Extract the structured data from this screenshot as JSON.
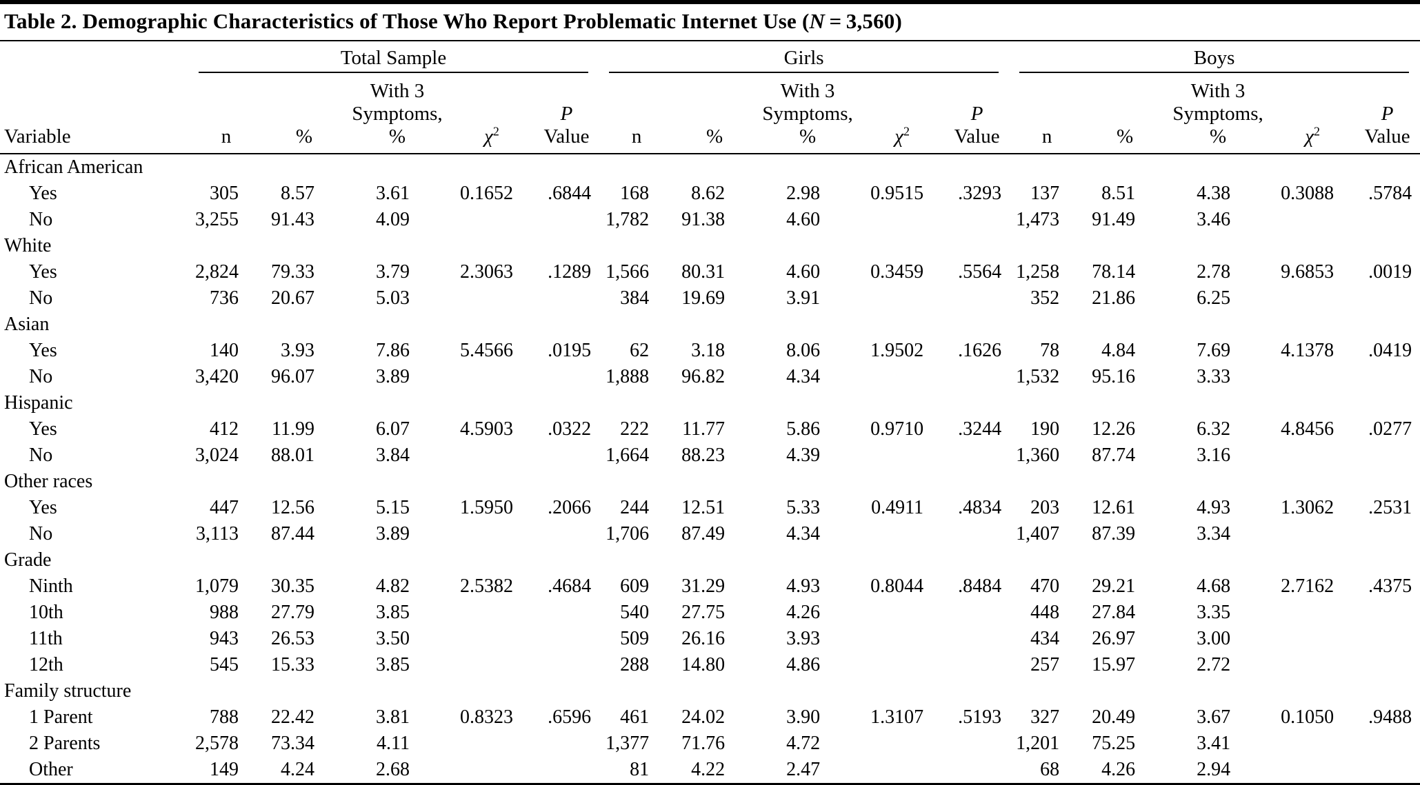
{
  "title": {
    "prefix": "Table 2. Demographic Characteristics of Those Who Report Problematic Internet Use (",
    "n_symbol": "N",
    "suffix": " = 3,560)"
  },
  "table": {
    "groups": [
      "Total Sample",
      "Girls",
      "Boys"
    ],
    "columns": {
      "variable": "Variable",
      "n": "n",
      "pct": "%",
      "symptoms": "With 3\nSymptoms,\n%",
      "chi": "χ",
      "chi_sup": "2",
      "p_line1": "P",
      "p_line2": "Value"
    },
    "rows": [
      {
        "label": "African American",
        "type": "category",
        "indent": false,
        "cells": []
      },
      {
        "label": "Yes",
        "type": "data",
        "indent": true,
        "cells": [
          "305",
          "8.57",
          "3.61",
          "0.1652",
          ".6844",
          "168",
          "8.62",
          "2.98",
          "0.9515",
          ".3293",
          "137",
          "8.51",
          "4.38",
          "0.3088",
          ".5784"
        ]
      },
      {
        "label": "No",
        "type": "data",
        "indent": true,
        "cells": [
          "3,255",
          "91.43",
          "4.09",
          "",
          "",
          "1,782",
          "91.38",
          "4.60",
          "",
          "",
          "1,473",
          "91.49",
          "3.46",
          "",
          ""
        ]
      },
      {
        "label": "White",
        "type": "category",
        "indent": false,
        "cells": []
      },
      {
        "label": "Yes",
        "type": "data",
        "indent": true,
        "cells": [
          "2,824",
          "79.33",
          "3.79",
          "2.3063",
          ".1289",
          "1,566",
          "80.31",
          "4.60",
          "0.3459",
          ".5564",
          "1,258",
          "78.14",
          "2.78",
          "9.6853",
          ".0019"
        ]
      },
      {
        "label": "No",
        "type": "data",
        "indent": true,
        "cells": [
          "736",
          "20.67",
          "5.03",
          "",
          "",
          "384",
          "19.69",
          "3.91",
          "",
          "",
          "352",
          "21.86",
          "6.25",
          "",
          ""
        ]
      },
      {
        "label": "Asian",
        "type": "category",
        "indent": false,
        "cells": []
      },
      {
        "label": "Yes",
        "type": "data",
        "indent": true,
        "cells": [
          "140",
          "3.93",
          "7.86",
          "5.4566",
          ".0195",
          "62",
          "3.18",
          "8.06",
          "1.9502",
          ".1626",
          "78",
          "4.84",
          "7.69",
          "4.1378",
          ".0419"
        ]
      },
      {
        "label": "No",
        "type": "data",
        "indent": true,
        "cells": [
          "3,420",
          "96.07",
          "3.89",
          "",
          "",
          "1,888",
          "96.82",
          "4.34",
          "",
          "",
          "1,532",
          "95.16",
          "3.33",
          "",
          ""
        ]
      },
      {
        "label": "Hispanic",
        "type": "category",
        "indent": false,
        "cells": []
      },
      {
        "label": "Yes",
        "type": "data",
        "indent": true,
        "cells": [
          "412",
          "11.99",
          "6.07",
          "4.5903",
          ".0322",
          "222",
          "11.77",
          "5.86",
          "0.9710",
          ".3244",
          "190",
          "12.26",
          "6.32",
          "4.8456",
          ".0277"
        ]
      },
      {
        "label": "No",
        "type": "data",
        "indent": true,
        "cells": [
          "3,024",
          "88.01",
          "3.84",
          "",
          "",
          "1,664",
          "88.23",
          "4.39",
          "",
          "",
          "1,360",
          "87.74",
          "3.16",
          "",
          ""
        ]
      },
      {
        "label": "Other races",
        "type": "category",
        "indent": false,
        "cells": []
      },
      {
        "label": "Yes",
        "type": "data",
        "indent": true,
        "cells": [
          "447",
          "12.56",
          "5.15",
          "1.5950",
          ".2066",
          "244",
          "12.51",
          "5.33",
          "0.4911",
          ".4834",
          "203",
          "12.61",
          "4.93",
          "1.3062",
          ".2531"
        ]
      },
      {
        "label": "No",
        "type": "data",
        "indent": true,
        "cells": [
          "3,113",
          "87.44",
          "3.89",
          "",
          "",
          "1,706",
          "87.49",
          "4.34",
          "",
          "",
          "1,407",
          "87.39",
          "3.34",
          "",
          ""
        ]
      },
      {
        "label": "Grade",
        "type": "category",
        "indent": false,
        "cells": []
      },
      {
        "label": "Ninth",
        "type": "data",
        "indent": true,
        "cells": [
          "1,079",
          "30.35",
          "4.82",
          "2.5382",
          ".4684",
          "609",
          "31.29",
          "4.93",
          "0.8044",
          ".8484",
          "470",
          "29.21",
          "4.68",
          "2.7162",
          ".4375"
        ]
      },
      {
        "label": "10th",
        "type": "data",
        "indent": true,
        "cells": [
          "988",
          "27.79",
          "3.85",
          "",
          "",
          "540",
          "27.75",
          "4.26",
          "",
          "",
          "448",
          "27.84",
          "3.35",
          "",
          ""
        ]
      },
      {
        "label": "11th",
        "type": "data",
        "indent": true,
        "cells": [
          "943",
          "26.53",
          "3.50",
          "",
          "",
          "509",
          "26.16",
          "3.93",
          "",
          "",
          "434",
          "26.97",
          "3.00",
          "",
          ""
        ]
      },
      {
        "label": "12th",
        "type": "data",
        "indent": true,
        "cells": [
          "545",
          "15.33",
          "3.85",
          "",
          "",
          "288",
          "14.80",
          "4.86",
          "",
          "",
          "257",
          "15.97",
          "2.72",
          "",
          ""
        ]
      },
      {
        "label": "Family structure",
        "type": "category",
        "indent": false,
        "cells": []
      },
      {
        "label": "1 Parent",
        "type": "data",
        "indent": true,
        "cells": [
          "788",
          "22.42",
          "3.81",
          "0.8323",
          ".6596",
          "461",
          "24.02",
          "3.90",
          "1.3107",
          ".5193",
          "327",
          "20.49",
          "3.67",
          "0.1050",
          ".9488"
        ]
      },
      {
        "label": "2 Parents",
        "type": "data",
        "indent": true,
        "cells": [
          "2,578",
          "73.34",
          "4.11",
          "",
          "",
          "1,377",
          "71.76",
          "4.72",
          "",
          "",
          "1,201",
          "75.25",
          "3.41",
          "",
          ""
        ]
      },
      {
        "label": "Other",
        "type": "data",
        "indent": true,
        "cells": [
          "149",
          "4.24",
          "2.68",
          "",
          "",
          "81",
          "4.22",
          "2.47",
          "",
          "",
          "68",
          "4.26",
          "2.94",
          "",
          ""
        ]
      }
    ]
  }
}
